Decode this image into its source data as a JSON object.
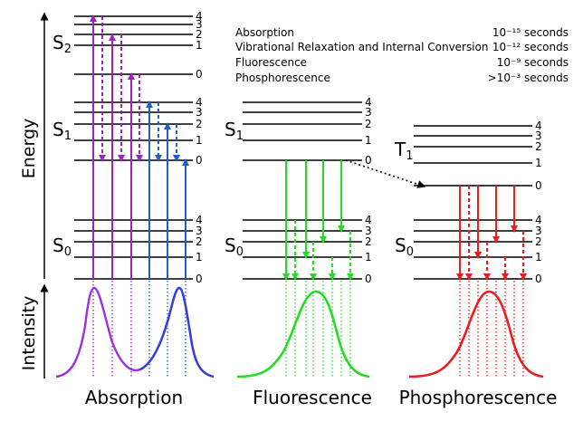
{
  "axes": {
    "energy_label": "Energy",
    "intensity_label": "Intensity"
  },
  "legend": [
    {
      "process": "Absorption",
      "time": "10⁻¹⁵ seconds"
    },
    {
      "process": "Vibrational Relaxation and Internal Conversion",
      "time": "10⁻¹² seconds"
    },
    {
      "process": "Fluorescence",
      "time": "10⁻⁹ seconds"
    },
    {
      "process": "Phosphorescence",
      "time": ">10⁻³ seconds"
    }
  ],
  "states": {
    "S2": {
      "base": "S",
      "sub": "2"
    },
    "S1": {
      "base": "S",
      "sub": "1"
    },
    "S0": {
      "base": "S",
      "sub": "0"
    },
    "T1": {
      "base": "T",
      "sub": "1"
    }
  },
  "vibrational_levels": [
    "0",
    "1",
    "2",
    "3",
    "4"
  ],
  "panels": [
    {
      "title": "Absorption"
    },
    {
      "title": "Fluorescence"
    },
    {
      "title": "Phosphorescence"
    }
  ],
  "colors": {
    "S2_absorption": "#a020c0",
    "S1_absorption": "#1f5fc8",
    "fluorescence": "#22dd22",
    "phosphorescence": "#ee1c1c",
    "absorption_curve": "#9a30e0",
    "absorption_curve_blue": "#3040e0"
  }
}
